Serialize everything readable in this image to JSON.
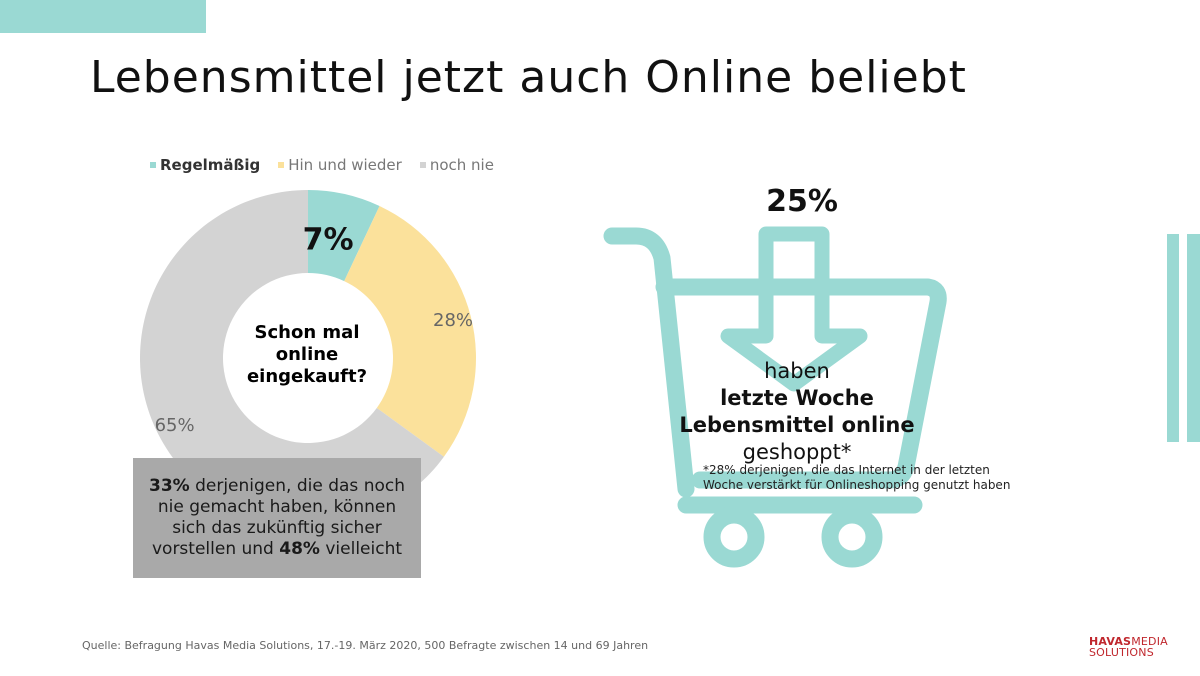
{
  "title": "Lebensmittel jetzt auch Online beliebt",
  "legend": [
    {
      "label": "Regelmäßig",
      "color": "#9ad9d3",
      "bold": true
    },
    {
      "label": "Hin und wieder",
      "color": "#fbe19b",
      "bold": false
    },
    {
      "label": "noch nie",
      "color": "#d3d3d3",
      "bold": false
    }
  ],
  "chart_data": {
    "type": "pie",
    "variant": "donut",
    "categories": [
      "Regelmäßig",
      "Hin und wieder",
      "noch nie"
    ],
    "values": [
      7,
      28,
      65
    ],
    "labels": [
      "7%",
      "28%",
      "65%"
    ],
    "colors": [
      "#9ad9d3",
      "#fbe19b",
      "#d3d3d3"
    ],
    "center_label": [
      "Schon mal",
      "online",
      "eingekauft?"
    ]
  },
  "note_box": {
    "part1_bold": "33%",
    "part2": " derjenigen, die das noch nie gemacht haben, können sich das zukünftig sicher vorstellen und ",
    "part3_bold": "48%",
    "part4": " vielleicht"
  },
  "cart": {
    "percent": "25%",
    "line1_normal": "haben ",
    "line1_bold": "letzte Woche",
    "line2_bold": "Lebensmittel online",
    "line3": "geshoppt*",
    "footnote": "*28% derjenigen, die das Internet in der letzten Woche verstärkt für Onlineshopping genutzt haben",
    "icon": "shopping-cart-icon",
    "color": "#9ad9d3"
  },
  "source": "Quelle: Befragung Havas Media Solutions, 17.-19. März 2020, 500 Befragte zwischen 14 und 69 Jahren",
  "logo": {
    "part1": "HAVAS",
    "part2": "MEDIA",
    "part3": "SOLUTIONS",
    "color": "#c0272d"
  }
}
